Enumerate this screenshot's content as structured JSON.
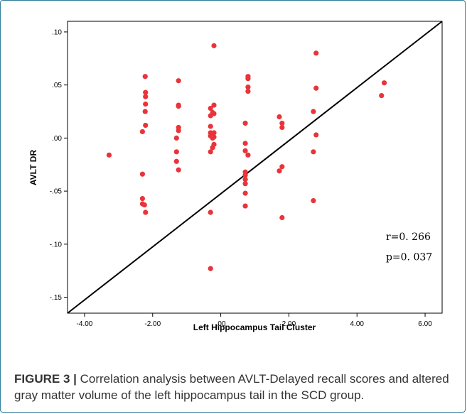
{
  "chart_data": {
    "type": "scatter",
    "title": "",
    "xlabel": "Left Hippocampus Tail Cluster",
    "ylabel": "AVLT DR",
    "xlim": [
      -4.5,
      6.5
    ],
    "ylim": [
      -0.165,
      0.11
    ],
    "x_ticks": [
      "-4.00",
      "-2.00",
      ".00",
      "2.00",
      "4.00",
      "6.00"
    ],
    "x_tick_values": [
      -4,
      -2,
      0,
      2,
      4,
      6
    ],
    "y_ticks": [
      ".10",
      ".05",
      ".00",
      "-.05",
      "-.10",
      "-.15"
    ],
    "y_tick_values": [
      0.1,
      0.05,
      0.0,
      -0.05,
      -0.1,
      -0.15
    ],
    "grid": false,
    "point_color": "#e8343a",
    "line_color": "#000000",
    "fit_line": {
      "x": [
        -4.5,
        6.5
      ],
      "y": [
        -0.165,
        0.11
      ]
    },
    "annotations": [
      {
        "text": "r=0. 266",
        "x": 4.85,
        "y": -0.096
      },
      {
        "text": "p=0. 037",
        "x": 4.85,
        "y": -0.115
      }
    ],
    "points": [
      {
        "x": -3.28,
        "y": -0.016
      },
      {
        "x": -2.3,
        "y": -0.034
      },
      {
        "x": -2.3,
        "y": -0.057
      },
      {
        "x": -2.3,
        "y": -0.062
      },
      {
        "x": -2.24,
        "y": -0.063
      },
      {
        "x": -2.21,
        "y": -0.07
      },
      {
        "x": -2.3,
        "y": 0.006
      },
      {
        "x": -2.22,
        "y": 0.058
      },
      {
        "x": -2.21,
        "y": 0.043
      },
      {
        "x": -2.21,
        "y": 0.039
      },
      {
        "x": -2.21,
        "y": 0.032
      },
      {
        "x": -2.22,
        "y": 0.025
      },
      {
        "x": -2.21,
        "y": 0.012
      },
      {
        "x": -1.24,
        "y": 0.054
      },
      {
        "x": -1.24,
        "y": 0.031
      },
      {
        "x": -1.24,
        "y": 0.03
      },
      {
        "x": -1.24,
        "y": 0.01
      },
      {
        "x": -1.24,
        "y": 0.007
      },
      {
        "x": -1.3,
        "y": 0.0
      },
      {
        "x": -1.3,
        "y": -0.013
      },
      {
        "x": -1.3,
        "y": -0.022
      },
      {
        "x": -1.24,
        "y": -0.03
      },
      {
        "x": -0.2,
        "y": 0.087
      },
      {
        "x": -0.2,
        "y": 0.031
      },
      {
        "x": -0.3,
        "y": 0.028
      },
      {
        "x": -0.24,
        "y": 0.024
      },
      {
        "x": -0.2,
        "y": 0.023
      },
      {
        "x": -0.3,
        "y": 0.021
      },
      {
        "x": -0.3,
        "y": 0.011
      },
      {
        "x": -0.3,
        "y": 0.005
      },
      {
        "x": -0.2,
        "y": 0.005
      },
      {
        "x": -0.3,
        "y": 0.002
      },
      {
        "x": -0.2,
        "y": 0.001
      },
      {
        "x": -0.24,
        "y": 0.0
      },
      {
        "x": -0.2,
        "y": -0.006
      },
      {
        "x": -0.24,
        "y": -0.009
      },
      {
        "x": -0.3,
        "y": -0.013
      },
      {
        "x": -0.3,
        "y": -0.07
      },
      {
        "x": -0.3,
        "y": -0.123
      },
      {
        "x": 0.8,
        "y": 0.058
      },
      {
        "x": 0.8,
        "y": 0.056
      },
      {
        "x": 0.8,
        "y": 0.048
      },
      {
        "x": 0.8,
        "y": 0.044
      },
      {
        "x": 0.72,
        "y": 0.014
      },
      {
        "x": 0.72,
        "y": -0.005
      },
      {
        "x": 0.72,
        "y": -0.012
      },
      {
        "x": 0.8,
        "y": -0.016
      },
      {
        "x": 0.72,
        "y": -0.032
      },
      {
        "x": 0.72,
        "y": -0.035
      },
      {
        "x": 0.72,
        "y": -0.039
      },
      {
        "x": 0.72,
        "y": -0.043
      },
      {
        "x": 0.72,
        "y": -0.052
      },
      {
        "x": 0.72,
        "y": -0.064
      },
      {
        "x": 1.72,
        "y": 0.02
      },
      {
        "x": 1.8,
        "y": 0.014
      },
      {
        "x": 1.8,
        "y": 0.01
      },
      {
        "x": 1.8,
        "y": -0.027
      },
      {
        "x": 1.72,
        "y": -0.031
      },
      {
        "x": 1.8,
        "y": -0.075
      },
      {
        "x": 2.8,
        "y": 0.08
      },
      {
        "x": 2.8,
        "y": 0.047
      },
      {
        "x": 2.72,
        "y": 0.025
      },
      {
        "x": 2.8,
        "y": 0.003
      },
      {
        "x": 2.72,
        "y": -0.013
      },
      {
        "x": 2.72,
        "y": -0.059
      },
      {
        "x": 4.8,
        "y": 0.052
      },
      {
        "x": 4.72,
        "y": 0.04
      }
    ]
  },
  "caption": {
    "label": "FIGURE 3 |",
    "text": " Correlation analysis between AVLT-Delayed recall scores and altered gray matter volume of the left hippocampus tail in the SCD group."
  }
}
